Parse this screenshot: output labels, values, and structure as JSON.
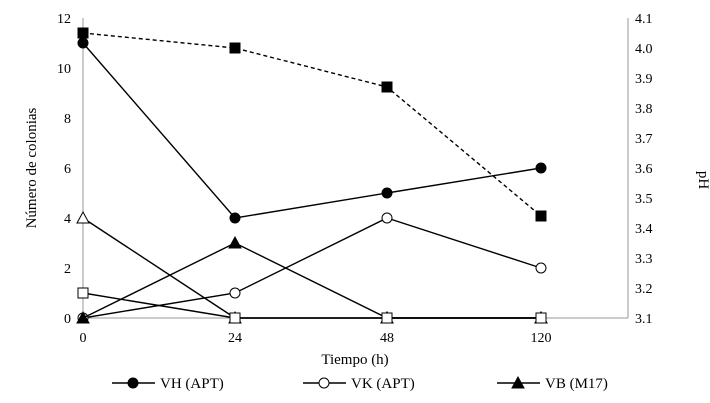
{
  "chart_data": {
    "type": "line",
    "categories": [
      "0",
      "24",
      "48",
      "120"
    ],
    "xlabel": "Tiempo (h)",
    "ylabel": "Número de colonias",
    "y2label": "pH",
    "ylim": [
      0,
      12
    ],
    "y2lim": [
      3.1,
      4.1
    ],
    "yticks": [
      "0",
      "2",
      "4",
      "6",
      "8",
      "10",
      "12"
    ],
    "y2ticks": [
      "3.1",
      "3.2",
      "3.3",
      "3.4",
      "3.5",
      "3.6",
      "3.7",
      "3.8",
      "3.9",
      "4.0",
      "4.1"
    ],
    "series": [
      {
        "name": "VH (APT)",
        "axis": "left",
        "marker": "circle",
        "filled": true,
        "dashed": false,
        "values": [
          11,
          4,
          5,
          6
        ]
      },
      {
        "name": "VK (APT)",
        "axis": "left",
        "marker": "circle",
        "filled": false,
        "dashed": false,
        "values": [
          0,
          1,
          4,
          2
        ]
      },
      {
        "name": "VB (M17)",
        "axis": "left",
        "marker": "triangle",
        "filled": true,
        "dashed": false,
        "values": [
          0,
          3,
          0,
          0
        ]
      },
      {
        "name": "",
        "axis": "left",
        "marker": "triangle",
        "filled": false,
        "dashed": false,
        "values": [
          4,
          0,
          0,
          0
        ]
      },
      {
        "name": "",
        "axis": "left",
        "marker": "square",
        "filled": false,
        "dashed": false,
        "values": [
          1,
          0,
          0,
          0
        ]
      },
      {
        "name": "",
        "axis": "right",
        "marker": "square",
        "filled": true,
        "dashed": true,
        "values": [
          4.05,
          4.0,
          3.87,
          3.44
        ]
      }
    ],
    "legend": [
      "VH (APT)",
      "VK (APT)",
      "VB (M17)"
    ],
    "legend_position": "bottom"
  }
}
